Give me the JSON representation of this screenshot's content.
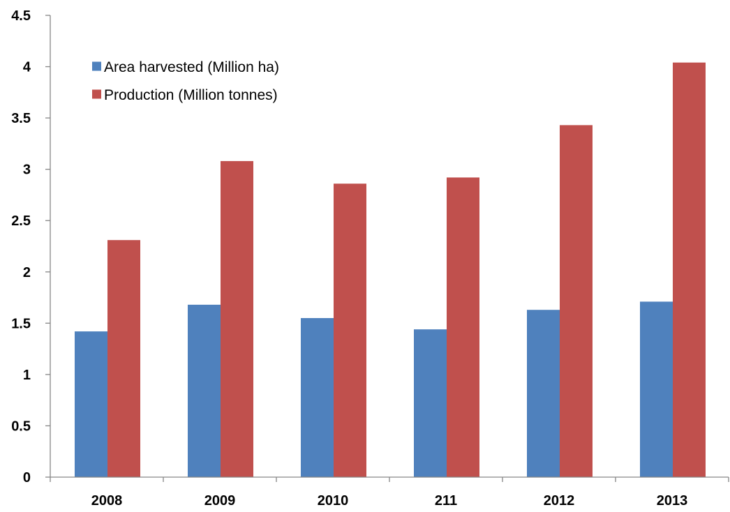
{
  "chart_data": {
    "type": "bar",
    "categories": [
      "2008",
      "2009",
      "2010",
      "211",
      "2012",
      "2013"
    ],
    "series": [
      {
        "name": "Area harvested (Million ha)",
        "color": "#4f81bd",
        "values": [
          1.42,
          1.68,
          1.55,
          1.44,
          1.63,
          1.71
        ]
      },
      {
        "name": "Production (Million tonnes)",
        "color": "#c0504d",
        "values": [
          2.31,
          3.08,
          2.86,
          2.92,
          3.43,
          4.04
        ]
      }
    ],
    "ylim": [
      0,
      4.5
    ],
    "yticks": [
      "0",
      "0.5",
      "1",
      "1.5",
      "2",
      "2.5",
      "3",
      "3.5",
      "4",
      "4.5"
    ],
    "title": "",
    "xlabel": "",
    "ylabel": "",
    "legend_position": "top-left",
    "grid": false
  }
}
